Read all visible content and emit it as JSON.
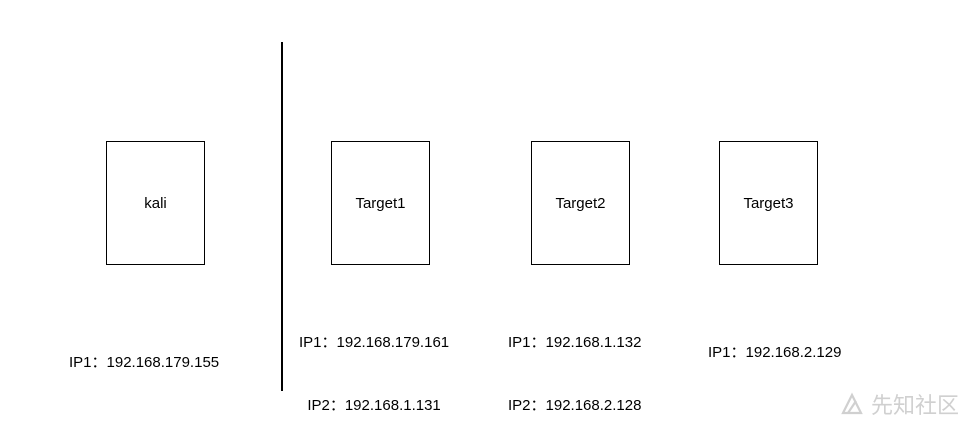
{
  "nodes": [
    {
      "label": "kali",
      "ips": [
        "IP1：192.168.179.155"
      ]
    },
    {
      "label": "Target1",
      "ips": [
        "IP1：192.168.179.161",
        "IP2：192.168.1.131"
      ]
    },
    {
      "label": "Target2",
      "ips": [
        "IP1：192.168.1.132",
        "IP2：192.168.2.128"
      ]
    },
    {
      "label": "Target3",
      "ips": [
        "IP1：192.168.2.129"
      ]
    }
  ],
  "watermark": {
    "text": "先知社区",
    "icon": "xianzhi-logo-icon"
  }
}
